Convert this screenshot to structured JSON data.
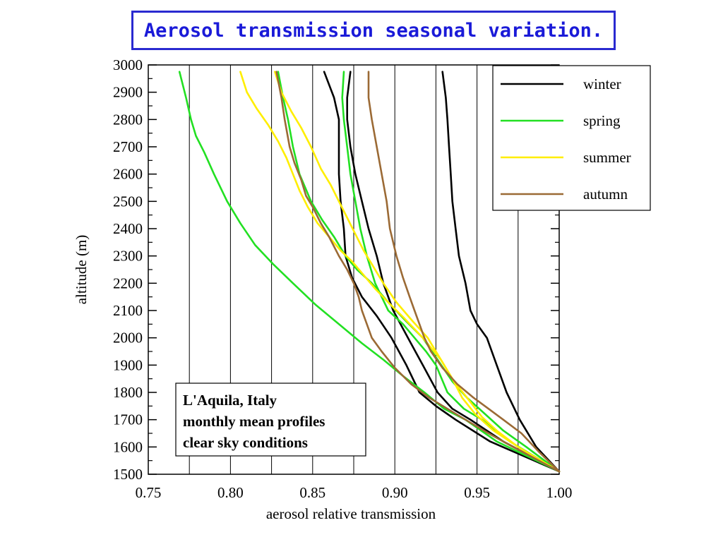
{
  "title": "Aerosol transmission seasonal variation.",
  "chart_data": {
    "type": "line",
    "xlabel": "aerosol relative transmission",
    "ylabel": "altitude (m)",
    "xlim": [
      0.75,
      1.0
    ],
    "ylim": [
      1500,
      3000
    ],
    "x_ticks": [
      "0.75",
      "0.80",
      "0.85",
      "0.90",
      "0.95",
      "1.00"
    ],
    "y_ticks": [
      "1500",
      "1600",
      "1700",
      "1800",
      "1900",
      "2000",
      "2100",
      "2200",
      "2300",
      "2400",
      "2500",
      "2600",
      "2700",
      "2800",
      "2900",
      "3000"
    ],
    "grid": "vertical lines at x ticks",
    "legend_position": "top-right",
    "annotation": [
      "L'Aquila, Italy",
      "monthly mean profiles",
      "clear sky conditions"
    ],
    "series": [
      {
        "name": "winter",
        "color": "#000000",
        "lines": [
          [
            [
              0.857,
              2975
            ],
            [
              0.863,
              2880
            ],
            [
              0.866,
              2800
            ],
            [
              0.866,
              2700
            ],
            [
              0.866,
              2600
            ],
            [
              0.867,
              2500
            ],
            [
              0.869,
              2400
            ],
            [
              0.87,
              2300
            ],
            [
              0.874,
              2220
            ],
            [
              0.88,
              2150
            ],
            [
              0.889,
              2080
            ],
            [
              0.898,
              2000
            ],
            [
              0.907,
              1900
            ],
            [
              0.915,
              1800
            ],
            [
              0.925,
              1750
            ],
            [
              0.937,
              1700
            ],
            [
              0.958,
              1620
            ],
            [
              1.0,
              1510
            ]
          ],
          [
            [
              0.873,
              2975
            ],
            [
              0.871,
              2880
            ],
            [
              0.871,
              2800
            ],
            [
              0.873,
              2700
            ],
            [
              0.876,
              2600
            ],
            [
              0.88,
              2500
            ],
            [
              0.884,
              2400
            ],
            [
              0.889,
              2300
            ],
            [
              0.893,
              2200
            ],
            [
              0.899,
              2100
            ],
            [
              0.908,
              2000
            ],
            [
              0.917,
              1900
            ],
            [
              0.926,
              1800
            ],
            [
              0.935,
              1740
            ],
            [
              0.946,
              1700
            ],
            [
              0.966,
              1620
            ],
            [
              1.0,
              1510
            ]
          ],
          [
            [
              0.929,
              2975
            ],
            [
              0.931,
              2880
            ],
            [
              0.932,
              2800
            ],
            [
              0.933,
              2700
            ],
            [
              0.934,
              2600
            ],
            [
              0.935,
              2500
            ],
            [
              0.937,
              2400
            ],
            [
              0.939,
              2300
            ],
            [
              0.943,
              2200
            ],
            [
              0.946,
              2100
            ],
            [
              0.95,
              2050
            ],
            [
              0.956,
              2000
            ],
            [
              0.962,
              1900
            ],
            [
              0.968,
              1800
            ],
            [
              0.976,
              1700
            ],
            [
              0.986,
              1600
            ],
            [
              1.0,
              1510
            ]
          ]
        ]
      },
      {
        "name": "spring",
        "color": "#22e022",
        "lines": [
          [
            [
              0.769,
              2975
            ],
            [
              0.773,
              2880
            ],
            [
              0.776,
              2800
            ],
            [
              0.779,
              2740
            ],
            [
              0.784,
              2680
            ],
            [
              0.79,
              2600
            ],
            [
              0.798,
              2500
            ],
            [
              0.806,
              2420
            ],
            [
              0.815,
              2340
            ],
            [
              0.826,
              2270
            ],
            [
              0.838,
              2200
            ],
            [
              0.852,
              2120
            ],
            [
              0.866,
              2050
            ],
            [
              0.88,
              1980
            ],
            [
              0.893,
              1920
            ],
            [
              0.905,
              1860
            ],
            [
              0.918,
              1800
            ],
            [
              0.93,
              1740
            ],
            [
              0.943,
              1700
            ],
            [
              0.962,
              1620
            ],
            [
              1.0,
              1510
            ]
          ],
          [
            [
              0.869,
              2975
            ],
            [
              0.868,
              2880
            ],
            [
              0.869,
              2800
            ],
            [
              0.871,
              2700
            ],
            [
              0.873,
              2600
            ],
            [
              0.876,
              2500
            ],
            [
              0.879,
              2400
            ],
            [
              0.883,
              2300
            ],
            [
              0.888,
              2200
            ],
            [
              0.896,
              2100
            ],
            [
              0.905,
              2050
            ],
            [
              0.912,
              2000
            ],
            [
              0.919,
              1950
            ],
            [
              0.925,
              1900
            ],
            [
              0.932,
              1800
            ],
            [
              0.942,
              1740
            ],
            [
              0.953,
              1700
            ],
            [
              0.97,
              1620
            ],
            [
              1.0,
              1510
            ]
          ],
          [
            [
              0.829,
              2975
            ],
            [
              0.832,
              2880
            ],
            [
              0.835,
              2800
            ],
            [
              0.838,
              2700
            ],
            [
              0.842,
              2600
            ],
            [
              0.849,
              2500
            ],
            [
              0.856,
              2430
            ],
            [
              0.863,
              2370
            ],
            [
              0.87,
              2300
            ],
            [
              0.877,
              2250
            ],
            [
              0.886,
              2200
            ],
            [
              0.896,
              2130
            ],
            [
              0.907,
              2060
            ],
            [
              0.917,
              2000
            ],
            [
              0.926,
              1920
            ],
            [
              0.935,
              1840
            ],
            [
              0.944,
              1780
            ],
            [
              0.955,
              1720
            ],
            [
              0.966,
              1660
            ],
            [
              0.98,
              1600
            ],
            [
              1.0,
              1510
            ]
          ]
        ]
      },
      {
        "name": "summer",
        "color": "#ffee00",
        "lines": [
          [
            [
              0.806,
              2975
            ],
            [
              0.81,
              2900
            ],
            [
              0.816,
              2840
            ],
            [
              0.823,
              2780
            ],
            [
              0.829,
              2720
            ],
            [
              0.834,
              2660
            ],
            [
              0.838,
              2600
            ],
            [
              0.842,
              2540
            ],
            [
              0.847,
              2480
            ],
            [
              0.853,
              2420
            ],
            [
              0.86,
              2370
            ],
            [
              0.867,
              2320
            ],
            [
              0.874,
              2280
            ],
            [
              0.881,
              2230
            ],
            [
              0.888,
              2180
            ],
            [
              0.896,
              2130
            ],
            [
              0.906,
              2070
            ],
            [
              0.917,
              2000
            ],
            [
              0.928,
              1920
            ],
            [
              0.936,
              1840
            ],
            [
              0.944,
              1780
            ],
            [
              0.953,
              1710
            ],
            [
              0.962,
              1660
            ],
            [
              0.975,
              1600
            ],
            [
              1.0,
              1510
            ]
          ],
          [
            [
              0.827,
              2975
            ],
            [
              0.831,
              2900
            ],
            [
              0.837,
              2830
            ],
            [
              0.843,
              2770
            ],
            [
              0.849,
              2700
            ],
            [
              0.855,
              2620
            ],
            [
              0.861,
              2560
            ],
            [
              0.866,
              2500
            ],
            [
              0.871,
              2440
            ],
            [
              0.876,
              2380
            ],
            [
              0.881,
              2320
            ],
            [
              0.887,
              2260
            ],
            [
              0.893,
              2200
            ],
            [
              0.901,
              2130
            ],
            [
              0.911,
              2060
            ],
            [
              0.92,
              2000
            ],
            [
              0.928,
              1920
            ],
            [
              0.935,
              1850
            ],
            [
              0.941,
              1780
            ],
            [
              0.949,
              1720
            ],
            [
              0.96,
              1660
            ],
            [
              0.975,
              1600
            ],
            [
              1.0,
              1510
            ]
          ]
        ]
      },
      {
        "name": "autumn",
        "color": "#9b6a35",
        "lines": [
          [
            [
              0.828,
              2975
            ],
            [
              0.831,
              2880
            ],
            [
              0.833,
              2800
            ],
            [
              0.836,
              2700
            ],
            [
              0.839,
              2640
            ],
            [
              0.843,
              2580
            ],
            [
              0.846,
              2520
            ],
            [
              0.85,
              2480
            ],
            [
              0.855,
              2420
            ],
            [
              0.86,
              2370
            ],
            [
              0.866,
              2300
            ],
            [
              0.871,
              2250
            ],
            [
              0.875,
              2200
            ],
            [
              0.878,
              2150
            ],
            [
              0.88,
              2100
            ],
            [
              0.883,
              2050
            ],
            [
              0.886,
              2000
            ],
            [
              0.892,
              1950
            ],
            [
              0.9,
              1890
            ],
            [
              0.91,
              1830
            ],
            [
              0.921,
              1780
            ],
            [
              0.932,
              1740
            ],
            [
              0.943,
              1700
            ],
            [
              0.957,
              1650
            ],
            [
              0.972,
              1600
            ],
            [
              1.0,
              1510
            ]
          ],
          [
            [
              0.884,
              2975
            ],
            [
              0.884,
              2880
            ],
            [
              0.886,
              2800
            ],
            [
              0.889,
              2700
            ],
            [
              0.892,
              2600
            ],
            [
              0.895,
              2500
            ],
            [
              0.897,
              2400
            ],
            [
              0.901,
              2300
            ],
            [
              0.905,
              2220
            ],
            [
              0.909,
              2150
            ],
            [
              0.912,
              2100
            ],
            [
              0.915,
              2050
            ],
            [
              0.918,
              2000
            ],
            [
              0.922,
              1950
            ],
            [
              0.929,
              1890
            ],
            [
              0.938,
              1830
            ],
            [
              0.948,
              1780
            ],
            [
              0.957,
              1740
            ],
            [
              0.966,
              1700
            ],
            [
              0.977,
              1650
            ],
            [
              0.988,
              1580
            ],
            [
              1.0,
              1510
            ]
          ]
        ]
      }
    ]
  }
}
